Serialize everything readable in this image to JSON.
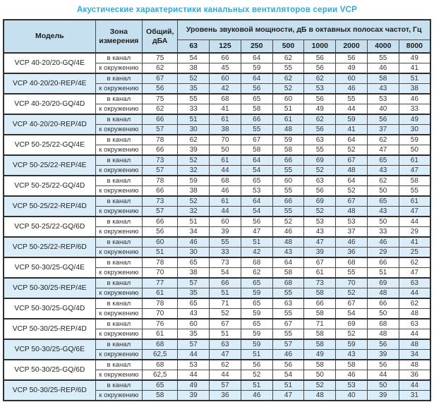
{
  "title": "Акустические характеристики канальных вентиляторов  серии VCP",
  "header": {
    "model": "Модель",
    "zone": "Зона измерения",
    "total": "Общий, дБА",
    "band_group": "Уровень звуковой мощности, дБ в октавных полосах частот, Гц",
    "frequencies": [
      "63",
      "125",
      "250",
      "500",
      "1000",
      "2000",
      "4000",
      "8000"
    ]
  },
  "zone_labels": {
    "duct": "в канал",
    "ambient": "к окружению"
  },
  "rows": [
    {
      "model": "VCP 40-20/20-GQ/4E",
      "highlight": false,
      "duct": {
        "total": "75",
        "bands": [
          54,
          66,
          64,
          62,
          56,
          56,
          55,
          49
        ]
      },
      "ambient": {
        "total": "62",
        "bands": [
          38,
          45,
          59,
          55,
          56,
          49,
          46,
          41
        ]
      }
    },
    {
      "model": "VCP 40-20/20-REP/4E",
      "highlight": true,
      "duct": {
        "total": "67",
        "bands": [
          52,
          60,
          64,
          62,
          62,
          60,
          58,
          51
        ]
      },
      "ambient": {
        "total": "56",
        "bands": [
          35,
          42,
          56,
          52,
          53,
          46,
          43,
          38
        ]
      }
    },
    {
      "model": "VCP 40-20/20-GQ/4D",
      "highlight": false,
      "duct": {
        "total": "75",
        "bands": [
          55,
          68,
          65,
          60,
          56,
          55,
          53,
          46
        ]
      },
      "ambient": {
        "total": "62",
        "bands": [
          33,
          41,
          58,
          51,
          49,
          44,
          40,
          33
        ]
      }
    },
    {
      "model": "VCP 40-20/20-REP/4D",
      "highlight": true,
      "duct": {
        "total": "66",
        "bands": [
          51,
          61,
          66,
          61,
          62,
          59,
          56,
          49
        ]
      },
      "ambient": {
        "total": "57",
        "bands": [
          30,
          38,
          55,
          48,
          56,
          41,
          37,
          30
        ]
      }
    },
    {
      "model": "VCP 50-25/22-GQ/4E",
      "highlight": false,
      "duct": {
        "total": "78",
        "bands": [
          62,
          70,
          67,
          59,
          63,
          64,
          62,
          59
        ]
      },
      "ambient": {
        "total": "66",
        "bands": [
          39,
          50,
          58,
          58,
          55,
          52,
          47,
          50
        ]
      }
    },
    {
      "model": "VCP 50-25/22-REP/4E",
      "highlight": true,
      "duct": {
        "total": "73",
        "bands": [
          52,
          61,
          64,
          66,
          69,
          67,
          65,
          61
        ]
      },
      "ambient": {
        "total": "57",
        "bands": [
          32,
          44,
          54,
          55,
          52,
          48,
          43,
          47
        ]
      }
    },
    {
      "model": "VCP 50-25/22-GQ/4D",
      "highlight": false,
      "duct": {
        "total": "78",
        "bands": [
          59,
          68,
          65,
          60,
          63,
          64,
          62,
          58
        ]
      },
      "ambient": {
        "total": "66",
        "bands": [
          38,
          46,
          53,
          55,
          56,
          52,
          50,
          55
        ]
      }
    },
    {
      "model": "VCP 50-25/22-REP/4D",
      "highlight": true,
      "duct": {
        "total": "73",
        "bands": [
          52,
          61,
          64,
          66,
          69,
          67,
          65,
          61
        ]
      },
      "ambient": {
        "total": "57",
        "bands": [
          32,
          44,
          54,
          55,
          52,
          48,
          43,
          47
        ]
      }
    },
    {
      "model": "VCP 50-25/22-GQ/6D",
      "highlight": false,
      "duct": {
        "total": "66",
        "bands": [
          51,
          60,
          56,
          52,
          53,
          53,
          50,
          44
        ]
      },
      "ambient": {
        "total": "56",
        "bands": [
          34,
          39,
          47,
          46,
          43,
          37,
          33,
          29
        ]
      }
    },
    {
      "model": "VCP 50-25/22-REP/6D",
      "highlight": true,
      "duct": {
        "total": "60",
        "bands": [
          46,
          55,
          51,
          48,
          47,
          46,
          46,
          41
        ]
      },
      "ambient": {
        "total": "51",
        "bands": [
          30,
          33,
          42,
          43,
          39,
          36,
          29,
          25
        ]
      }
    },
    {
      "model": "VCP 50-30/25-GQ/4E",
      "highlight": false,
      "duct": {
        "total": "78",
        "bands": [
          65,
          73,
          68,
          64,
          67,
          68,
          66,
          62
        ]
      },
      "ambient": {
        "total": "70",
        "bands": [
          38,
          54,
          62,
          58,
          61,
          55,
          51,
          47
        ]
      }
    },
    {
      "model": "VCP 50-30/25-REP/4E",
      "highlight": true,
      "duct": {
        "total": "77",
        "bands": [
          57,
          66,
          65,
          68,
          73,
          70,
          69,
          63
        ]
      },
      "ambient": {
        "total": "61",
        "bands": [
          35,
          51,
          59,
          55,
          58,
          52,
          48,
          44
        ]
      }
    },
    {
      "model": "VCP 50-30/25-GQ/4D",
      "highlight": false,
      "duct": {
        "total": "78",
        "bands": [
          65,
          71,
          65,
          63,
          66,
          67,
          66,
          62
        ]
      },
      "ambient": {
        "total": "70",
        "bands": [
          43,
          52,
          59,
          55,
          58,
          54,
          50,
          48
        ]
      }
    },
    {
      "model": "VCP 50-30/25-REP/4D",
      "highlight": false,
      "duct": {
        "total": "76",
        "bands": [
          60,
          67,
          65,
          67,
          71,
          69,
          68,
          63
        ]
      },
      "ambient": {
        "total": "61",
        "bands": [
          35,
          51,
          59,
          55,
          58,
          52,
          48,
          44
        ]
      }
    },
    {
      "model": "VCP 50-30/25-GQ/6E",
      "highlight": true,
      "duct": {
        "total": "68",
        "bands": [
          57,
          63,
          59,
          57,
          58,
          59,
          56,
          48
        ]
      },
      "ambient": {
        "total": "62,5",
        "bands": [
          44,
          47,
          51,
          46,
          49,
          43,
          39,
          34
        ]
      }
    },
    {
      "model": "VCP 50-30/25-GQ/6D",
      "highlight": false,
      "duct": {
        "total": "68",
        "bands": [
          53,
          62,
          56,
          56,
          58,
          58,
          56,
          48
        ]
      },
      "ambient": {
        "total": "62,5",
        "bands": [
          44,
          44,
          52,
          54,
          50,
          46,
          44,
          36
        ]
      }
    },
    {
      "model": "VCP 50-30/25-REP/6D",
      "highlight": true,
      "duct": {
        "total": "65",
        "bands": [
          49,
          57,
          51,
          51,
          52,
          53,
          50,
          44
        ]
      },
      "ambient": {
        "total": "58",
        "bands": [
          39,
          36,
          46,
          47,
          48,
          40,
          39,
          31
        ]
      }
    }
  ]
}
